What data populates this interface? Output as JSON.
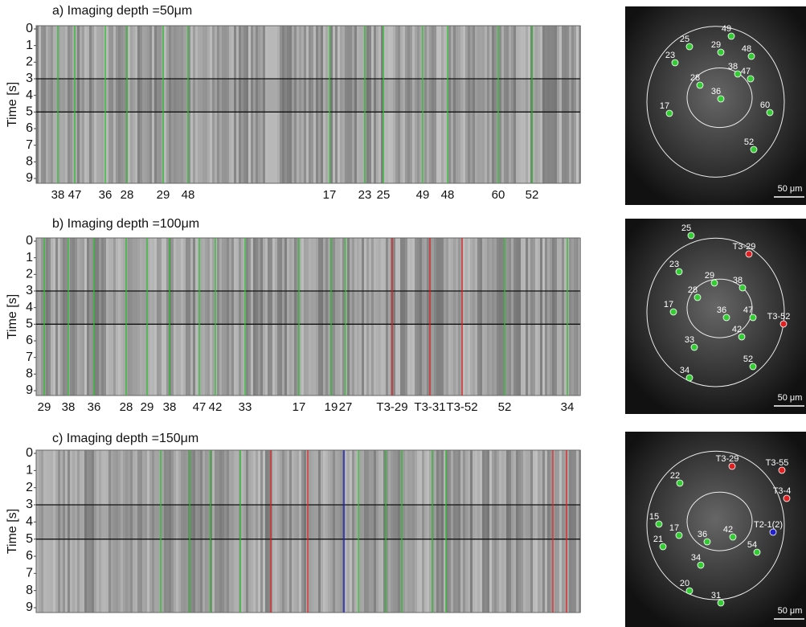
{
  "panels": [
    {
      "title": "a) Imaging depth =50μm",
      "ylabel": "Time [s]",
      "ylim": [
        0,
        9
      ],
      "yticks": [
        0,
        1,
        2,
        3,
        4,
        5,
        6,
        7,
        8,
        9
      ],
      "stimulus": [
        3,
        5
      ],
      "columns": [
        {
          "label": "38",
          "color": "#2ebd2e"
        },
        {
          "label": "47",
          "color": "#2ebd2e"
        },
        {
          "label": "36",
          "color": "#2ebd2e"
        },
        {
          "label": "28",
          "color": "#2ebd2e"
        },
        {
          "label": "29",
          "color": "#2ebd2e"
        },
        {
          "label": "48",
          "color": "#2ebd2e"
        },
        {
          "label": "17",
          "color": "#2ebd2e"
        },
        {
          "label": "23",
          "color": "#2ebd2e"
        },
        {
          "label": "25",
          "color": "#2ebd2e"
        },
        {
          "label": "49",
          "color": "#2ebd2e"
        },
        {
          "label": "48",
          "color": "#2ebd2e"
        },
        {
          "label": "60",
          "color": "#2ebd2e"
        },
        {
          "label": "52",
          "color": "#2ebd2e"
        }
      ],
      "cells": [
        {
          "label": "49",
          "color": "#33cc33"
        },
        {
          "label": "25",
          "color": "#33cc33"
        },
        {
          "label": "23",
          "color": "#33cc33"
        },
        {
          "label": "29",
          "color": "#33cc33"
        },
        {
          "label": "48",
          "color": "#33cc33"
        },
        {
          "label": "38",
          "color": "#33cc33"
        },
        {
          "label": "47",
          "color": "#33cc33"
        },
        {
          "label": "28",
          "color": "#33cc33"
        },
        {
          "label": "36",
          "color": "#33cc33"
        },
        {
          "label": "17",
          "color": "#33cc33"
        },
        {
          "label": "60",
          "color": "#33cc33"
        },
        {
          "label": "52",
          "color": "#33cc33"
        }
      ],
      "scale_bar": "50 μm"
    },
    {
      "title": "b) Imaging depth =100μm",
      "ylabel": "Time [s]",
      "ylim": [
        0,
        9
      ],
      "yticks": [
        0,
        1,
        2,
        3,
        4,
        5,
        6,
        7,
        8,
        9
      ],
      "stimulus": [
        3,
        5
      ],
      "columns": [
        {
          "label": "29",
          "color": "#2ebd2e"
        },
        {
          "label": "38",
          "color": "#2ebd2e"
        },
        {
          "label": "36",
          "color": "#2ebd2e"
        },
        {
          "label": "28",
          "color": "#2ebd2e"
        },
        {
          "label": "29",
          "color": "#2ebd2e"
        },
        {
          "label": "38",
          "color": "#2ebd2e"
        },
        {
          "label": "47",
          "color": "#2ebd2e"
        },
        {
          "label": "42",
          "color": "#2ebd2e"
        },
        {
          "label": "33",
          "color": "#2ebd2e"
        },
        {
          "label": "17",
          "color": "#2ebd2e"
        },
        {
          "label": "19",
          "color": "#2ebd2e"
        },
        {
          "label": "27",
          "color": "#2ebd2e"
        },
        {
          "label": "T3-29",
          "color": "#e02020"
        },
        {
          "label": "T3-31",
          "color": "#e02020"
        },
        {
          "label": "T3-52",
          "color": "#e02020"
        },
        {
          "label": "52",
          "color": "#2ebd2e"
        },
        {
          "label": "34",
          "color": "#2ebd2e"
        }
      ],
      "cells": [
        {
          "label": "T3-29",
          "color": "#e02020"
        },
        {
          "label": "25",
          "color": "#33cc33"
        },
        {
          "label": "23",
          "color": "#33cc33"
        },
        {
          "label": "29",
          "color": "#33cc33"
        },
        {
          "label": "38",
          "color": "#33cc33"
        },
        {
          "label": "28",
          "color": "#33cc33"
        },
        {
          "label": "17",
          "color": "#33cc33"
        },
        {
          "label": "36",
          "color": "#33cc33"
        },
        {
          "label": "47",
          "color": "#33cc33"
        },
        {
          "label": "T3-52",
          "color": "#e02020"
        },
        {
          "label": "33",
          "color": "#33cc33"
        },
        {
          "label": "42",
          "color": "#33cc33"
        },
        {
          "label": "34",
          "color": "#33cc33"
        },
        {
          "label": "52",
          "color": "#33cc33"
        }
      ],
      "scale_bar": "50 μm"
    },
    {
      "title": "c) Imaging depth =150μm",
      "ylabel": "Time [s]",
      "ylim": [
        0,
        9
      ],
      "yticks": [
        0,
        1,
        2,
        3,
        4,
        5,
        6,
        7,
        8,
        9
      ],
      "stimulus": [
        3,
        5
      ],
      "columns": [
        {
          "color": "#2ebd2e"
        },
        {
          "color": "#2ebd2e"
        },
        {
          "color": "#2ebd2e"
        },
        {
          "color": "#2ebd2e"
        },
        {
          "color": "#e02020"
        },
        {
          "color": "#e02020"
        },
        {
          "color": "#2020d0"
        },
        {
          "color": "#2ebd2e"
        },
        {
          "color": "#2ebd2e"
        },
        {
          "color": "#2ebd2e"
        },
        {
          "color": "#2ebd2e"
        },
        {
          "color": "#2ebd2e"
        },
        {
          "color": "#e02020"
        },
        {
          "color": "#e02020"
        }
      ],
      "cells": [
        {
          "label": "T3-29",
          "color": "#e02020"
        },
        {
          "label": "T3-55",
          "color": "#e02020"
        },
        {
          "label": "T3-4",
          "color": "#e02020"
        },
        {
          "label": "22",
          "color": "#33cc33"
        },
        {
          "label": "15",
          "color": "#33cc33"
        },
        {
          "label": "17",
          "color": "#33cc33"
        },
        {
          "label": "21",
          "color": "#33cc33"
        },
        {
          "label": "36",
          "color": "#33cc33"
        },
        {
          "label": "42",
          "color": "#33cc33"
        },
        {
          "label": "T2-1(2)",
          "color": "#2020d0"
        },
        {
          "label": "34",
          "color": "#33cc33"
        },
        {
          "label": "54",
          "color": "#33cc33"
        },
        {
          "label": "20",
          "color": "#33cc33"
        },
        {
          "label": "31",
          "color": "#33cc33"
        }
      ],
      "scale_bar": "50 μm"
    }
  ]
}
